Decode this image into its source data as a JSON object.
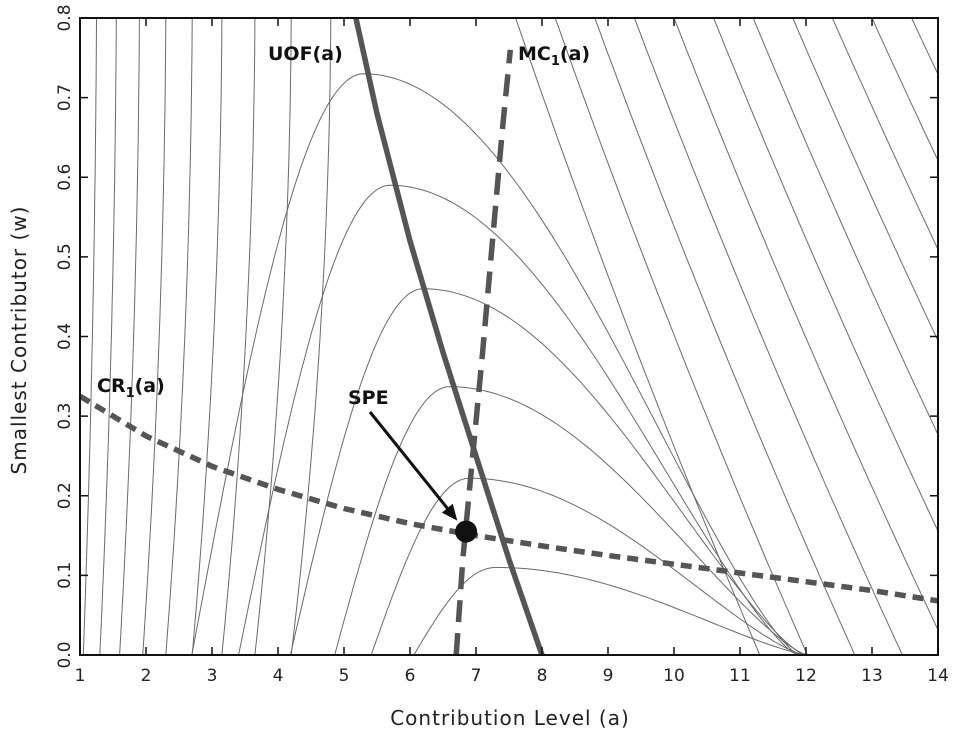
{
  "chart_data": {
    "type": "line",
    "xlabel": "Contribution Level (a)",
    "ylabel": "Smallest Contributor (w)",
    "xlim": [
      1,
      14
    ],
    "ylim": [
      0.0,
      0.8
    ],
    "x_ticks": [
      "1",
      "2",
      "3",
      "4",
      "5",
      "6",
      "7",
      "8",
      "9",
      "10",
      "11",
      "12",
      "13",
      "14"
    ],
    "y_ticks": [
      "0.0",
      "0.1",
      "0.2",
      "0.3",
      "0.4",
      "0.5",
      "0.6",
      "0.7",
      "0.8"
    ],
    "grid": false,
    "series": [
      {
        "name": "UOF(a)",
        "style": "solid-thick",
        "color": "#555555",
        "x": [
          5.18,
          5.5,
          6.0,
          6.5,
          7.0,
          7.5,
          8.0
        ],
        "y": [
          0.8,
          0.68,
          0.52,
          0.38,
          0.25,
          0.12,
          0.0
        ]
      },
      {
        "name": "MC1(a)",
        "style": "long-dash-thick",
        "color": "#555555",
        "x": [
          6.7,
          6.8,
          6.95,
          7.1,
          7.25,
          7.4,
          7.52
        ],
        "y": [
          0.0,
          0.12,
          0.25,
          0.38,
          0.52,
          0.66,
          0.76
        ]
      },
      {
        "name": "CR1(a)",
        "style": "short-dash-thick",
        "color": "#555555",
        "x": [
          1.0,
          2.0,
          3.0,
          4.0,
          5.0,
          6.0,
          7.0,
          8.0,
          9.0,
          10.0,
          11.0,
          12.0,
          13.0,
          14.0
        ],
        "y": [
          0.325,
          0.275,
          0.237,
          0.208,
          0.184,
          0.165,
          0.15,
          0.137,
          0.125,
          0.114,
          0.103,
          0.092,
          0.081,
          0.068
        ]
      }
    ],
    "contour_peaks": [
      {
        "a": 5.3,
        "w": 0.73
      },
      {
        "a": 5.7,
        "w": 0.59
      },
      {
        "a": 6.2,
        "w": 0.46
      },
      {
        "a": 6.6,
        "w": 0.337
      },
      {
        "a": 6.9,
        "w": 0.222
      },
      {
        "a": 7.3,
        "w": 0.11
      }
    ],
    "annotations": [
      {
        "text": "SPE",
        "point": {
          "a": 6.85,
          "w": 0.155
        }
      }
    ]
  },
  "labels": {
    "uof": "UOF(a)",
    "mc_main": "MC",
    "mc_sub": "1",
    "mc_tail": "(a)",
    "cr_main": "CR",
    "cr_sub": "1",
    "cr_tail": "(a)",
    "spe": "SPE"
  }
}
